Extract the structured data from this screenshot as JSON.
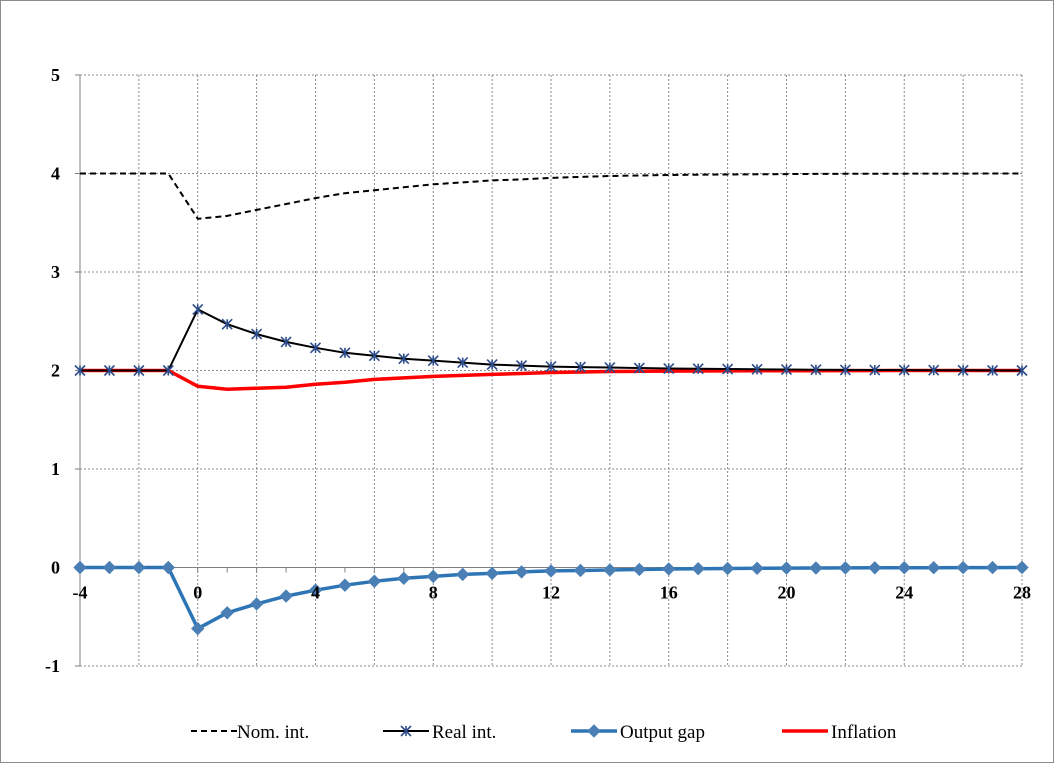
{
  "chart_data": {
    "type": "line",
    "title": "",
    "xlabel": "",
    "ylabel": "",
    "xlim": [
      -4,
      28
    ],
    "ylim": [
      -1,
      5
    ],
    "x_ticks": [
      "-4",
      "0",
      "4",
      "8",
      "12",
      "16",
      "20",
      "24",
      "28"
    ],
    "y_ticks": [
      "-1",
      "0",
      "1",
      "2",
      "3",
      "4",
      "5"
    ],
    "grid": true,
    "legend_position": "bottom",
    "x": [
      -4,
      -3,
      -2,
      -1,
      0,
      1,
      2,
      3,
      4,
      5,
      6,
      7,
      8,
      9,
      10,
      11,
      12,
      13,
      14,
      15,
      16,
      17,
      18,
      19,
      20,
      21,
      22,
      23,
      24,
      25,
      26,
      27,
      28
    ],
    "series": [
      {
        "name": "Nom. int.",
        "color": "#000000",
        "style": "dashed",
        "marker": "none",
        "values": [
          4,
          4,
          4,
          4,
          3.54,
          3.57,
          3.63,
          3.69,
          3.75,
          3.8,
          3.83,
          3.86,
          3.89,
          3.91,
          3.93,
          3.94,
          3.955,
          3.965,
          3.975,
          3.98,
          3.985,
          3.988,
          3.99,
          3.992,
          3.994,
          3.996,
          3.997,
          3.998,
          3.998,
          3.999,
          3.999,
          4,
          4
        ]
      },
      {
        "name": "Real int.",
        "color": "#000000",
        "marker_color": "#2e4d8c",
        "style": "solid",
        "marker": "star",
        "values": [
          2,
          2,
          2,
          2,
          2.62,
          2.47,
          2.37,
          2.29,
          2.23,
          2.18,
          2.15,
          2.12,
          2.1,
          2.08,
          2.06,
          2.05,
          2.04,
          2.035,
          2.03,
          2.025,
          2.02,
          2.018,
          2.015,
          2.012,
          2.01,
          2.008,
          2.006,
          2.005,
          2.004,
          2.003,
          2.002,
          2.001,
          2
        ]
      },
      {
        "name": "Output gap",
        "color": "#2e75b6",
        "marker_color": "#4a7fb5",
        "style": "solid",
        "marker": "diamond",
        "values": [
          0,
          0,
          0,
          0,
          -0.62,
          -0.46,
          -0.37,
          -0.29,
          -0.23,
          -0.18,
          -0.14,
          -0.11,
          -0.09,
          -0.07,
          -0.06,
          -0.045,
          -0.035,
          -0.03,
          -0.025,
          -0.02,
          -0.015,
          -0.012,
          -0.01,
          -0.008,
          -0.006,
          -0.005,
          -0.004,
          -0.003,
          -0.002,
          -0.002,
          -0.001,
          -0.001,
          0
        ]
      },
      {
        "name": "Inflation",
        "color": "#ff0000",
        "style": "solid",
        "marker": "none",
        "values": [
          2,
          2,
          2,
          2,
          1.84,
          1.81,
          1.82,
          1.83,
          1.86,
          1.88,
          1.91,
          1.925,
          1.94,
          1.95,
          1.96,
          1.97,
          1.98,
          1.985,
          1.99,
          1.992,
          1.994,
          1.995,
          1.996,
          1.997,
          1.998,
          1.998,
          1.999,
          1.999,
          2,
          2,
          2,
          2,
          2
        ]
      }
    ]
  }
}
